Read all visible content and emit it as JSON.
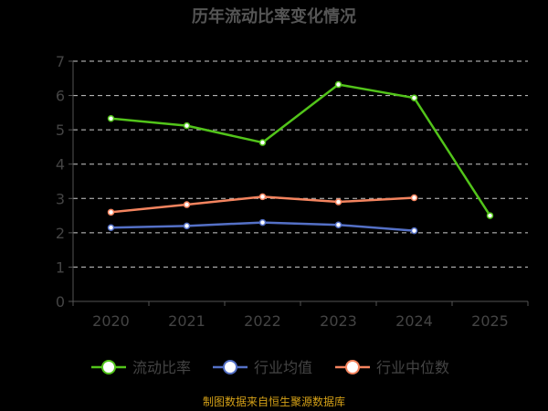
{
  "chart_data": {
    "type": "line",
    "title": "历年流动比率变化情况",
    "categories": [
      "2020",
      "2021",
      "2022",
      "2023",
      "2024",
      "2025"
    ],
    "y_ticks": [
      "0",
      "1",
      "2",
      "3",
      "4",
      "5",
      "6",
      "7"
    ],
    "ylim": [
      0,
      7
    ],
    "grid": true,
    "legend_position": "bottom",
    "series": [
      {
        "name": "流动比率",
        "color": "#52c41a",
        "values": [
          5.33,
          5.12,
          4.63,
          6.32,
          5.93,
          2.5
        ]
      },
      {
        "name": "行业均值",
        "color": "#5470c6",
        "values": [
          2.15,
          2.2,
          2.3,
          2.23,
          2.06,
          null
        ]
      },
      {
        "name": "行业中位数",
        "color": "#f4845f",
        "values": [
          2.6,
          2.82,
          3.05,
          2.9,
          3.02,
          null
        ]
      }
    ],
    "source": "制图数据来自恒生聚源数据库"
  }
}
